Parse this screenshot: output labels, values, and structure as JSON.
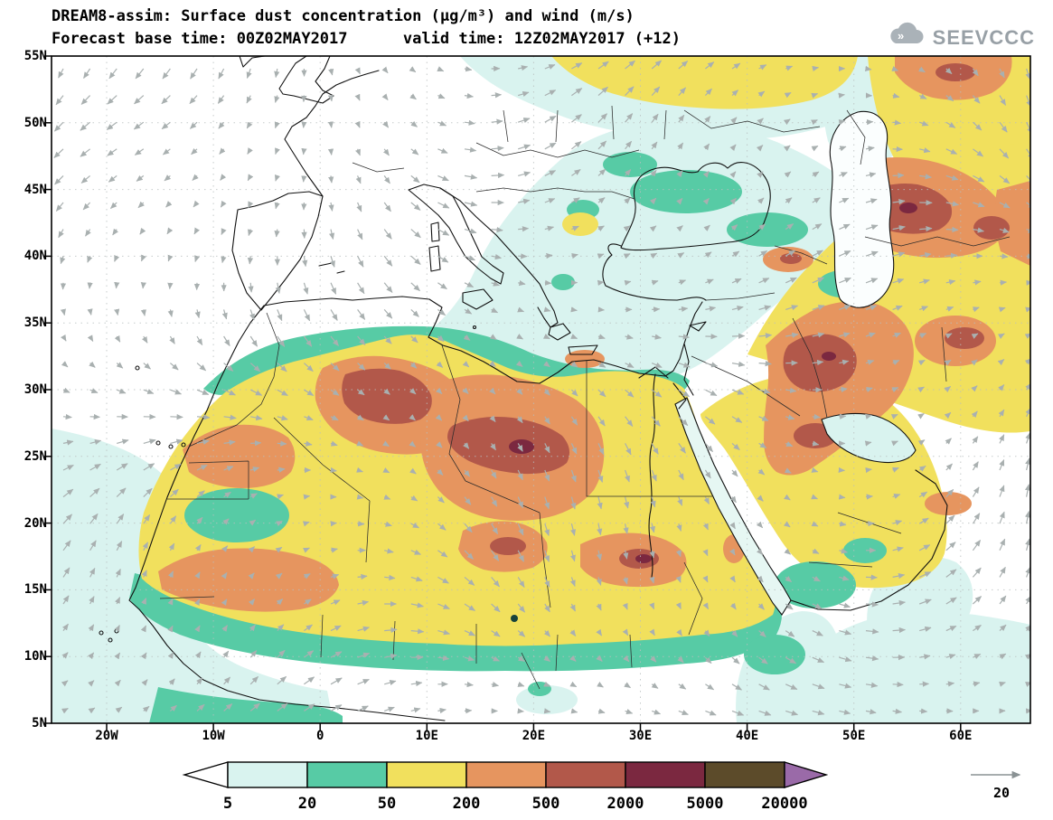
{
  "header": {
    "title": "DREAM8-assim: Surface dust concentration (µg/m³) and wind (m/s)",
    "subtitle": "Forecast base time: 00Z02MAY2017      valid time: 12Z02MAY2017 (+12)",
    "logo_text": "SEEVCCC"
  },
  "axes": {
    "y_labels": [
      "55N",
      "50N",
      "45N",
      "40N",
      "35N",
      "30N",
      "25N",
      "20N",
      "15N",
      "10N",
      "5N"
    ],
    "x_labels": [
      "20W",
      "10W",
      "0",
      "10E",
      "20E",
      "30E",
      "40E",
      "50E",
      "60E"
    ]
  },
  "colorbar": {
    "tick_labels": [
      "5",
      "20",
      "50",
      "200",
      "500",
      "2000",
      "5000",
      "20000"
    ],
    "colors": {
      "below": "#ffffff",
      "segments": [
        "#d9f3ef",
        "#57cba5",
        "#f1e05d",
        "#e6955f",
        "#b2584a",
        "#7b2840",
        "#5c4b2a"
      ],
      "above": "#9a6aa8"
    }
  },
  "wind_ref": {
    "label": "20"
  },
  "palette": {
    "arrow_gray": "#a9b0b0",
    "grid_gray": "#b9bfbf",
    "coast_black": "#111111",
    "cyan": "#d9f3ef",
    "green": "#57cba5",
    "yellow": "#f1e05d",
    "orange": "#e6955f",
    "red_brown": "#b2584a",
    "maroon": "#7b2840",
    "dark_olive": "#5c4b2a",
    "purple": "#9a6aa8"
  }
}
